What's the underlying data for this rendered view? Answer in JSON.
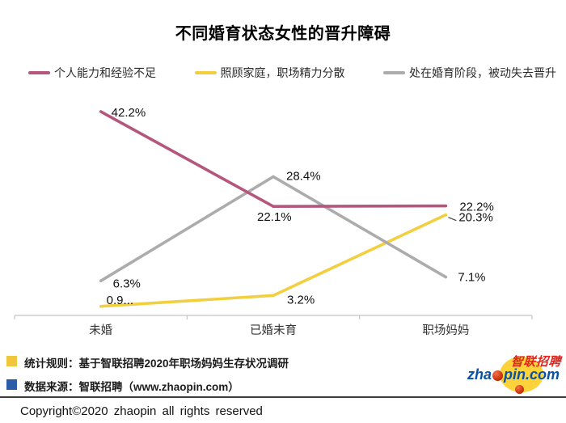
{
  "title": "不同婚育状态女性的晋升障碍",
  "legend": [
    {
      "label": "个人能力和经验不足",
      "color": "#b5567c"
    },
    {
      "label": "照顾家庭，职场精力分散",
      "color": "#f2cf3e"
    },
    {
      "label": "处在婚育阶段，被动失去晋升",
      "color": "#acacac"
    }
  ],
  "chart_data": {
    "type": "line",
    "title": "不同婚育状态女性的晋升障碍",
    "xlabel": "",
    "ylabel": "",
    "categories": [
      "未婚",
      "已婚未育",
      "职场妈妈"
    ],
    "series": [
      {
        "name": "个人能力和经验不足",
        "color": "#b5567c",
        "values": [
          42.2,
          22.1,
          22.2
        ],
        "labels": [
          "42.2%",
          "22.1%",
          "22.2%"
        ]
      },
      {
        "name": "照顾家庭，职场精力分散",
        "color": "#f2cf3e",
        "values": [
          0.9,
          3.2,
          20.3
        ],
        "labels": [
          "0.9...",
          "3.2%",
          "20.3%"
        ]
      },
      {
        "name": "处在婚育阶段，被动失去晋升",
        "color": "#acacac",
        "values": [
          6.3,
          28.4,
          7.1
        ],
        "labels": [
          "6.3%",
          "28.4%",
          "7.1%"
        ]
      }
    ],
    "ylim": [
      0,
      47
    ],
    "grid": false,
    "legend_position": "top",
    "axis_color": "#c4c4c4",
    "label_color": "#111111"
  },
  "footer": {
    "notes": [
      {
        "marker_color": "#f0c63c",
        "text": "统计规则：基于智联招聘2020年职场妈妈生存状况调研"
      },
      {
        "marker_color": "#2a5ca8",
        "text": "数据来源：智联招聘（www.zhaopin.com）"
      }
    ],
    "copyright": "Copyright©2020  zhaopin all rights reserved"
  },
  "logo": {
    "cjk": "智联招聘",
    "domain_prefix": "zha",
    "domain_suffix": "pin.com"
  }
}
